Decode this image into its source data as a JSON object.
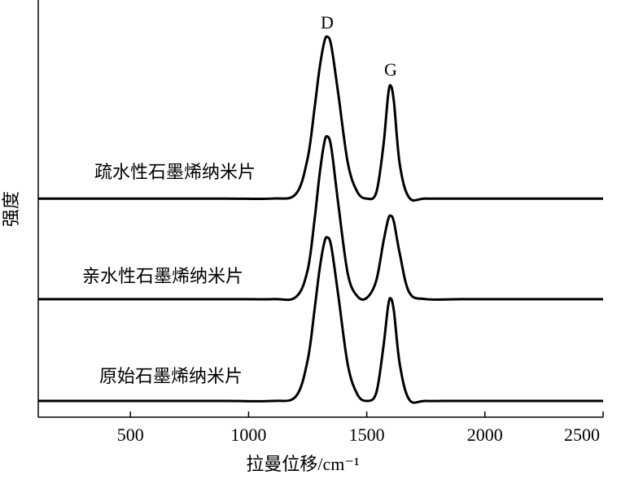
{
  "chart_data": {
    "type": "line",
    "x_label": "拉曼位移/cm⁻¹",
    "y_label": "强度",
    "annotations": [
      "D",
      "G"
    ],
    "x": [
      110,
      300,
      600,
      900,
      1100,
      1200,
      1250,
      1280,
      1300,
      1320,
      1333,
      1350,
      1380,
      1420,
      1460,
      1500,
      1540,
      1570,
      1590,
      1601,
      1615,
      1640,
      1680,
      1750,
      1900,
      2200,
      2500
    ],
    "series": [
      {
        "name": "疏水性石墨烯纳米片",
        "color": "#000000",
        "values": [
          52.4,
          52.4,
          52.4,
          52.4,
          52.4,
          53.5,
          62.1,
          74.5,
          83.5,
          89.9,
          91.2,
          89.0,
          77.3,
          60.9,
          54.0,
          52.4,
          53.8,
          64.9,
          77.0,
          79.5,
          75.6,
          60.5,
          52.6,
          52.4,
          52.4,
          52.4,
          52.4
        ]
      },
      {
        "name": "亲水性石墨烯纳米片",
        "color": "#000000",
        "values": [
          28.3,
          28.3,
          28.3,
          28.3,
          28.3,
          28.8,
          35.3,
          47.8,
          58.0,
          65.7,
          67.3,
          64.6,
          50.9,
          34.3,
          29.0,
          28.6,
          32.7,
          41.9,
          47.3,
          48.3,
          46.8,
          39.1,
          29.9,
          28.3,
          28.3,
          28.3,
          28.3
        ]
      },
      {
        "name": "原始石墨烯纳米片",
        "color": "#000000",
        "values": [
          3.9,
          3.9,
          3.9,
          3.9,
          3.9,
          5.0,
          13.7,
          26.2,
          35.3,
          41.8,
          43.1,
          40.9,
          29.0,
          12.5,
          5.5,
          3.9,
          5.8,
          16.7,
          26.5,
          28.5,
          25.4,
          12.6,
          4.2,
          3.9,
          3.9,
          3.9,
          3.9
        ]
      }
    ],
    "xlim": [
      110,
      2500
    ],
    "xticks": [
      500,
      1000,
      1500,
      2000,
      2500
    ],
    "ylim": [
      0,
      100
    ]
  }
}
